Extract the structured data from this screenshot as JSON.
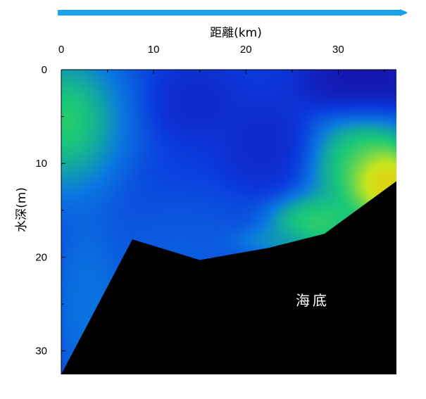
{
  "chart_data": {
    "type": "heatmap",
    "xlabel": "距離(km)",
    "ylabel": "水深(m)",
    "x_axis_position": "top",
    "y_axis_inverted": true,
    "xlim": [
      0,
      36.3
    ],
    "ylim": [
      0,
      32.5
    ],
    "x_ticks": [
      0,
      10,
      20,
      30
    ],
    "x_tick_labels": [
      "0",
      "10",
      "20",
      "30"
    ],
    "y_ticks": [
      0,
      10,
      20,
      30
    ],
    "y_tick_labels": [
      "0",
      "10",
      "20",
      "30"
    ],
    "x_minor_ticks": [
      5,
      15,
      25,
      35
    ],
    "y_minor_ticks": [
      5,
      15,
      25
    ],
    "arrow_color": "#1aa3e8",
    "colorscale": [
      "#1a0aa0",
      "#0a3adc",
      "#0a78e0",
      "#19c878",
      "#c8e61e",
      "#ffb400",
      "#f00000"
    ],
    "seabed_label": "海底",
    "seabed_profile": [
      {
        "x": 0,
        "depth": 32.5
      },
      {
        "x": 7.7,
        "depth": 18.1
      },
      {
        "x": 15.0,
        "depth": 20.3
      },
      {
        "x": 22.5,
        "depth": 19.0
      },
      {
        "x": 28.5,
        "depth": 17.5
      },
      {
        "x": 36.3,
        "depth": 11.9
      }
    ],
    "hotspots": [
      {
        "x": 0.5,
        "depth": 5.5,
        "level": 0.66,
        "sx": 3.2,
        "sy": 4.0
      },
      {
        "x": 0.5,
        "depth": 5.5,
        "level": 0.45,
        "sx": 5.5,
        "sy": 7.0
      },
      {
        "x": 35.0,
        "depth": 12.0,
        "level": 0.95,
        "sx": 2.6,
        "sy": 2.6
      },
      {
        "x": 33.0,
        "depth": 10.5,
        "level": 0.62,
        "sx": 4.5,
        "sy": 5.0
      },
      {
        "x": 27.5,
        "depth": 16.5,
        "level": 0.6,
        "sx": 4.0,
        "sy": 2.4
      },
      {
        "x": 23.0,
        "depth": 18.3,
        "level": 0.42,
        "sx": 3.5,
        "sy": 1.2
      },
      {
        "x": 3.0,
        "depth": 25.0,
        "level": 0.36,
        "sx": 2.8,
        "sy": 7.0
      },
      {
        "x": 13.0,
        "depth": 20.0,
        "level": 0.28,
        "sx": 7.0,
        "sy": 5.0
      },
      {
        "x": 33.0,
        "depth": 1.5,
        "level": 0.0,
        "sx": 5.0,
        "sy": 3.0
      },
      {
        "x": 14.5,
        "depth": 3.5,
        "level": 0.1,
        "sx": 3.5,
        "sy": 2.8
      },
      {
        "x": 22.0,
        "depth": 8.0,
        "level": 0.1,
        "sx": 3.5,
        "sy": 3.5
      }
    ],
    "background_level": 0.17,
    "contour_levels": [
      0.93
    ]
  }
}
